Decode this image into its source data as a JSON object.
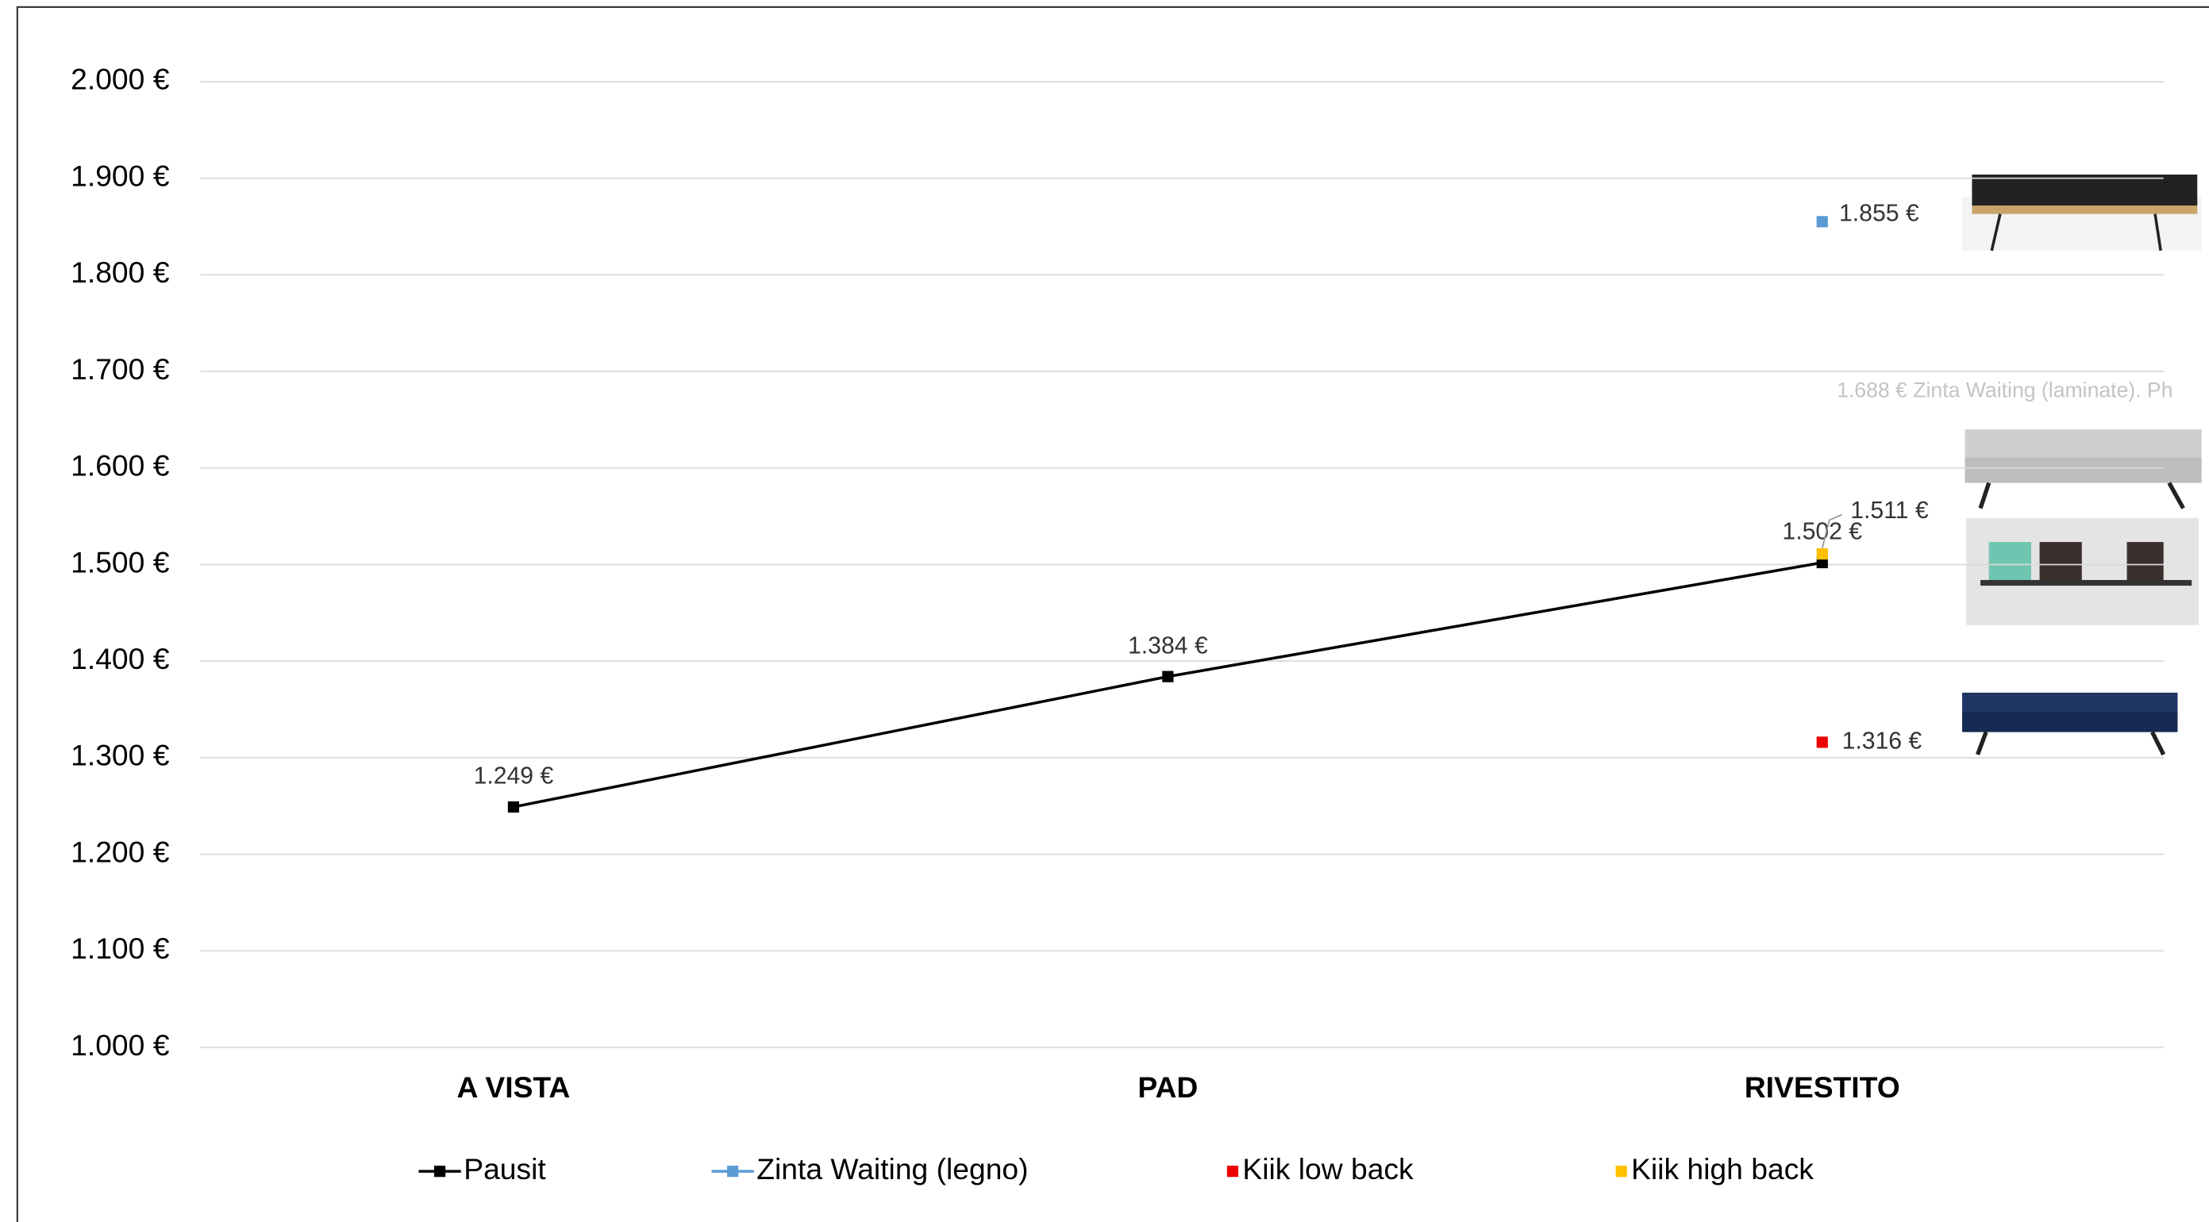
{
  "chart_data": {
    "type": "line",
    "categories": [
      "A VISTA",
      "PAD",
      "RIVESTITO"
    ],
    "series": [
      {
        "name": "Pausit",
        "color": "#000000",
        "line": true,
        "values": [
          1249,
          1384,
          1502
        ],
        "value_labels": [
          "1.249 €",
          "1.384 €",
          "1.502 €"
        ]
      },
      {
        "name": "Zinta Waiting (legno)",
        "color": "#5b9bd5",
        "line": true,
        "values": [
          null,
          null,
          1855
        ],
        "value_labels": [
          null,
          null,
          "1.855 €"
        ]
      },
      {
        "name": "Kiik low back",
        "color": "#ee0000",
        "line": false,
        "values": [
          null,
          null,
          1316
        ],
        "value_labels": [
          null,
          null,
          "1.316 €"
        ]
      },
      {
        "name": "Kiik high back",
        "color": "#ffc000",
        "line": false,
        "values": [
          null,
          null,
          1511
        ],
        "value_labels": [
          null,
          null,
          "1.511 €"
        ]
      }
    ],
    "annotation": "1.688 € Zinta Waiting (laminate). Ph",
    "ylim": [
      1000,
      2000
    ],
    "yticks": [
      {
        "value": 1000,
        "label": "1.000 €"
      },
      {
        "value": 1100,
        "label": "1.100 €"
      },
      {
        "value": 1200,
        "label": "1.200 €"
      },
      {
        "value": 1300,
        "label": "1.300 €"
      },
      {
        "value": 1400,
        "label": "1.400 €"
      },
      {
        "value": 1500,
        "label": "1.500 €"
      },
      {
        "value": 1600,
        "label": "1.600 €"
      },
      {
        "value": 1700,
        "label": "1.700 €"
      },
      {
        "value": 1800,
        "label": "1.800 €"
      },
      {
        "value": 1900,
        "label": "1.900 €"
      },
      {
        "value": 2000,
        "label": "2.000 €"
      }
    ],
    "grid": true
  }
}
